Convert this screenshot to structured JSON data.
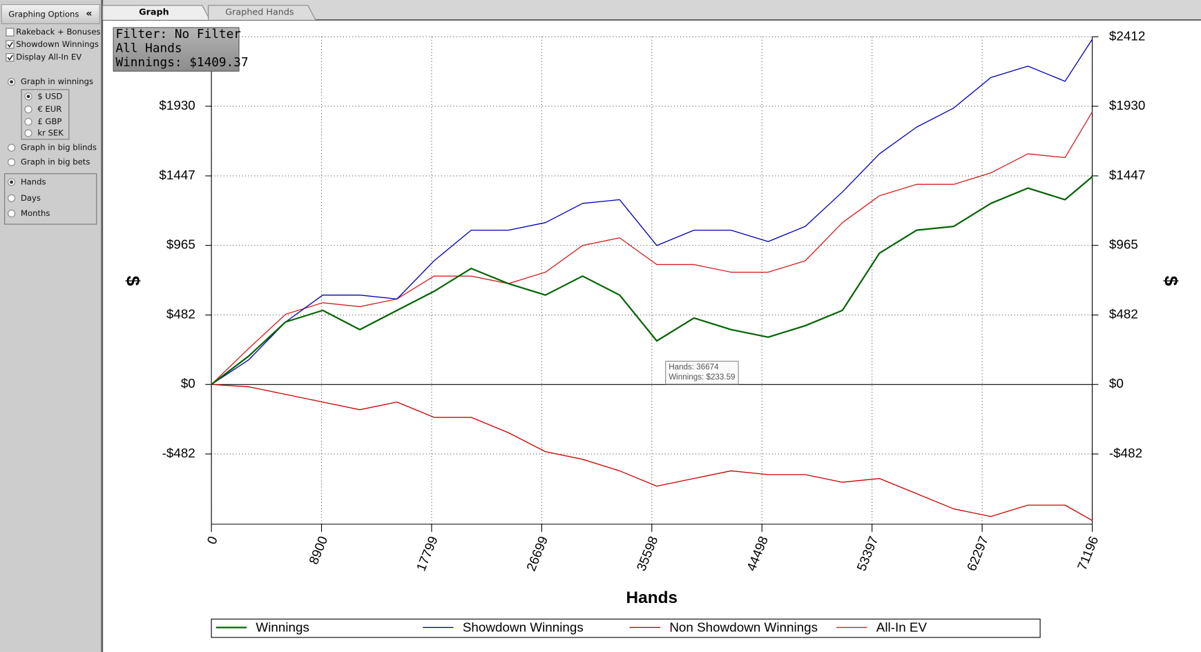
{
  "tabs": [
    {
      "label": "Graph",
      "active": true
    },
    {
      "label": "Graphed Hands",
      "active": false
    }
  ],
  "sidebar": {
    "title": "Graphing Options",
    "collapse": "«",
    "checkboxes": [
      {
        "label": "Rakeback + Bonuses",
        "checked": false
      },
      {
        "label": "Showdown Winnings",
        "checked": true
      },
      {
        "label": "Display All-In EV",
        "checked": true
      }
    ],
    "units": [
      {
        "label": "Graph in winnings",
        "selected": true
      },
      {
        "label": "Graph in big blinds",
        "selected": false
      },
      {
        "label": "Graph in big bets",
        "selected": false
      }
    ],
    "currencies": [
      {
        "label": "$ USD",
        "selected": true
      },
      {
        "label": "€ EUR",
        "selected": false
      },
      {
        "label": "£ GBP",
        "selected": false
      },
      {
        "label": "kr SEK",
        "selected": false
      }
    ],
    "axis_modes": [
      {
        "label": "Hands",
        "selected": true
      },
      {
        "label": "Days",
        "selected": false
      },
      {
        "label": "Months",
        "selected": false
      }
    ]
  },
  "chart_data": {
    "type": "line",
    "filter_box": [
      "Filter: No Filter",
      "All Hands",
      "Winnings: $1409.37"
    ],
    "tooltip": [
      "Hands: 36674",
      "Winnings: $233.59"
    ],
    "xlabel": "Hands",
    "ylabel": "$",
    "x": [
      0,
      3000,
      6000,
      9000,
      12000,
      15000,
      18000,
      21000,
      24000,
      27000,
      30000,
      33000,
      36000,
      39000,
      42000,
      45000,
      48000,
      51000,
      54000,
      57000,
      60000,
      63000,
      66000,
      69000,
      71196
    ],
    "series": [
      {
        "name": "Winnings",
        "color": "#006400",
        "values": [
          0,
          196,
          434,
          514,
          381,
          514,
          646,
          805,
          700,
          620,
          752,
          620,
          302,
          461,
          381,
          328,
          408,
          514,
          911,
          1070,
          1097,
          1256,
          1362,
          1282,
          1441
        ]
      },
      {
        "name": "Showdown Winnings",
        "color": "#0000b4",
        "values": [
          0,
          170,
          434,
          620,
          620,
          593,
          858,
          1070,
          1070,
          1123,
          1256,
          1282,
          964,
          1070,
          1070,
          991,
          1097,
          1335,
          1600,
          1785,
          1918,
          2129,
          2208,
          2103,
          2394
        ]
      },
      {
        "name": "Non Showdown Winnings",
        "color": "#cc0000",
        "values": [
          0,
          -16,
          -69,
          -122,
          -175,
          -122,
          -228,
          -228,
          -334,
          -466,
          -519,
          -599,
          -705,
          -652,
          -599,
          -625,
          -625,
          -678,
          -652,
          -757,
          -863,
          -916,
          -837,
          -837,
          -943
        ]
      },
      {
        "name": "All-In EV",
        "color": "#d42020",
        "values": [
          0,
          249,
          487,
          567,
          540,
          593,
          752,
          752,
          700,
          779,
          964,
          1017,
          832,
          832,
          779,
          779,
          858,
          1123,
          1309,
          1388,
          1388,
          1468,
          1600,
          1574,
          1891
        ]
      }
    ],
    "xlim": [
      0,
      71196
    ],
    "xticks": [
      0,
      8900,
      17799,
      26699,
      35598,
      44498,
      53397,
      62297,
      71196
    ],
    "ylim": [
      -969,
      2412
    ],
    "yticks": [
      {
        "value": -482,
        "label": "-$482"
      },
      {
        "value": 0,
        "label": "$0"
      },
      {
        "value": 482,
        "label": "$482"
      },
      {
        "value": 965,
        "label": "$965"
      },
      {
        "value": 1447,
        "label": "$1447"
      },
      {
        "value": 1930,
        "label": "$1930"
      },
      {
        "value": 2412,
        "label": "$2412"
      }
    ],
    "grid": true
  }
}
